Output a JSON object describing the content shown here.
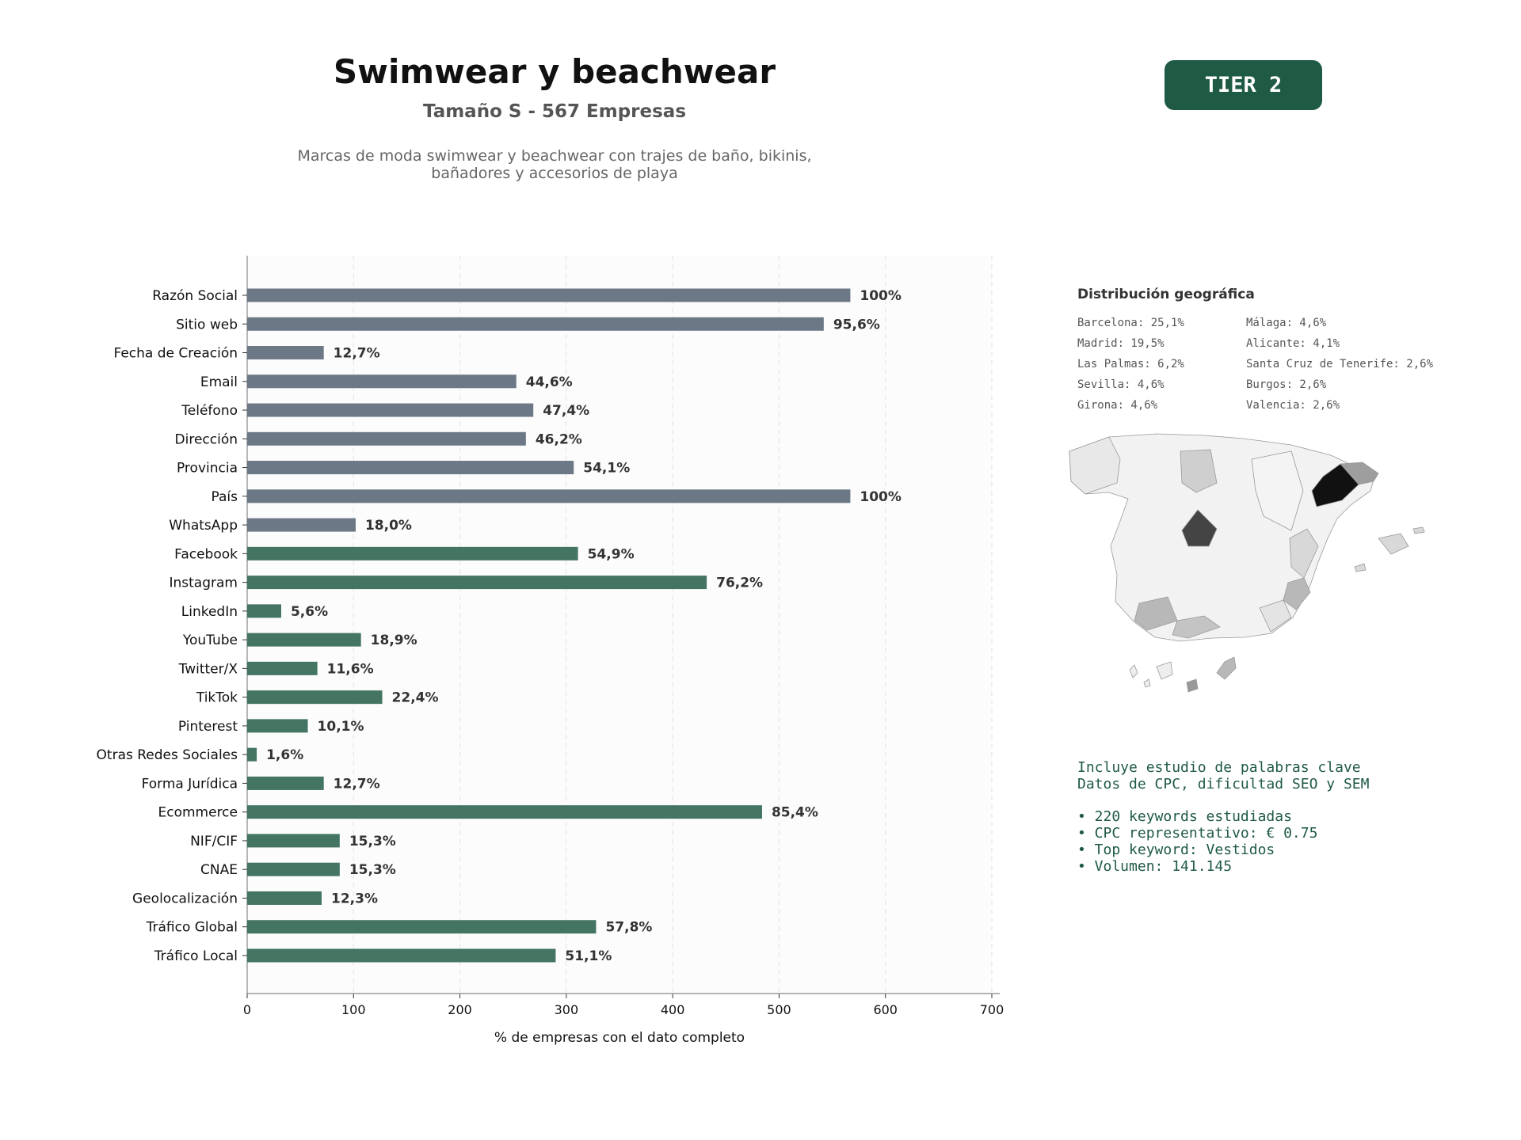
{
  "header": {
    "title": "Swimwear y beachwear",
    "subtitle": "Tamaño S - 567 Empresas",
    "description_line1": "Marcas de moda swimwear y beachwear con trajes de baño, bikinis,",
    "description_line2": "bañadores y accesorios de playa",
    "tier": "TIER 2"
  },
  "colors": {
    "gray_bar": "#6c7885",
    "green_bar": "#447562",
    "accent": "#1f5a44"
  },
  "chart_data": {
    "type": "bar",
    "orientation": "horizontal",
    "xlabel": "% de empresas con el dato completo",
    "xlim": [
      0,
      700
    ],
    "xticks": [
      0,
      100,
      200,
      300,
      400,
      500,
      600,
      700
    ],
    "grid": "vertical dashed",
    "categories": [
      "Razón Social",
      "Sitio web",
      "Fecha de Creación",
      "Email",
      "Teléfono",
      "Dirección",
      "Provincia",
      "País",
      "WhatsApp",
      "Facebook",
      "Instagram",
      "LinkedIn",
      "YouTube",
      "Twitter/X",
      "TikTok",
      "Pinterest",
      "Otras Redes Sociales",
      "Forma Jurídica",
      "Ecommerce",
      "NIF/CIF",
      "CNAE",
      "Geolocalización",
      "Tráfico Global",
      "Tráfico Local"
    ],
    "values": [
      567,
      542,
      72,
      253,
      269,
      262,
      307,
      567,
      102,
      311,
      432,
      32,
      107,
      66,
      127,
      57,
      9,
      72,
      484,
      87,
      87,
      70,
      328,
      290
    ],
    "labels": [
      "100%",
      "95,6%",
      "12,7%",
      "44,6%",
      "47,4%",
      "46,2%",
      "54,1%",
      "100%",
      "18,0%",
      "54,9%",
      "76,2%",
      "5,6%",
      "18,9%",
      "11,6%",
      "22,4%",
      "10,1%",
      "1,6%",
      "12,7%",
      "85,4%",
      "15,3%",
      "15,3%",
      "12,3%",
      "57,8%",
      "51,1%"
    ],
    "color_groups": [
      "gray",
      "gray",
      "gray",
      "gray",
      "gray",
      "gray",
      "gray",
      "gray",
      "gray",
      "green",
      "green",
      "green",
      "green",
      "green",
      "green",
      "green",
      "green",
      "green",
      "green",
      "green",
      "green",
      "green",
      "green",
      "green"
    ]
  },
  "geo": {
    "title": "Distribución geográfica",
    "col1": [
      "Barcelona: 25,1%",
      "Madrid: 19,5%",
      "Las Palmas: 6,2%",
      "Sevilla: 4,6%",
      "Girona: 4,6%"
    ],
    "col2": [
      "Málaga: 4,6%",
      "Alicante: 4,1%",
      "Santa Cruz de Tenerife: 2,6%",
      "Burgos: 2,6%",
      "Valencia: 2,6%"
    ]
  },
  "keywords": {
    "line1": "Incluye estudio de palabras clave",
    "line2": "Datos de CPC, dificultad SEO y SEM",
    "bullets": [
      "• 220 keywords estudiadas",
      "• CPC representativo: € 0.75",
      "• Top keyword: Vestidos",
      "• Volumen: 141.145"
    ]
  }
}
